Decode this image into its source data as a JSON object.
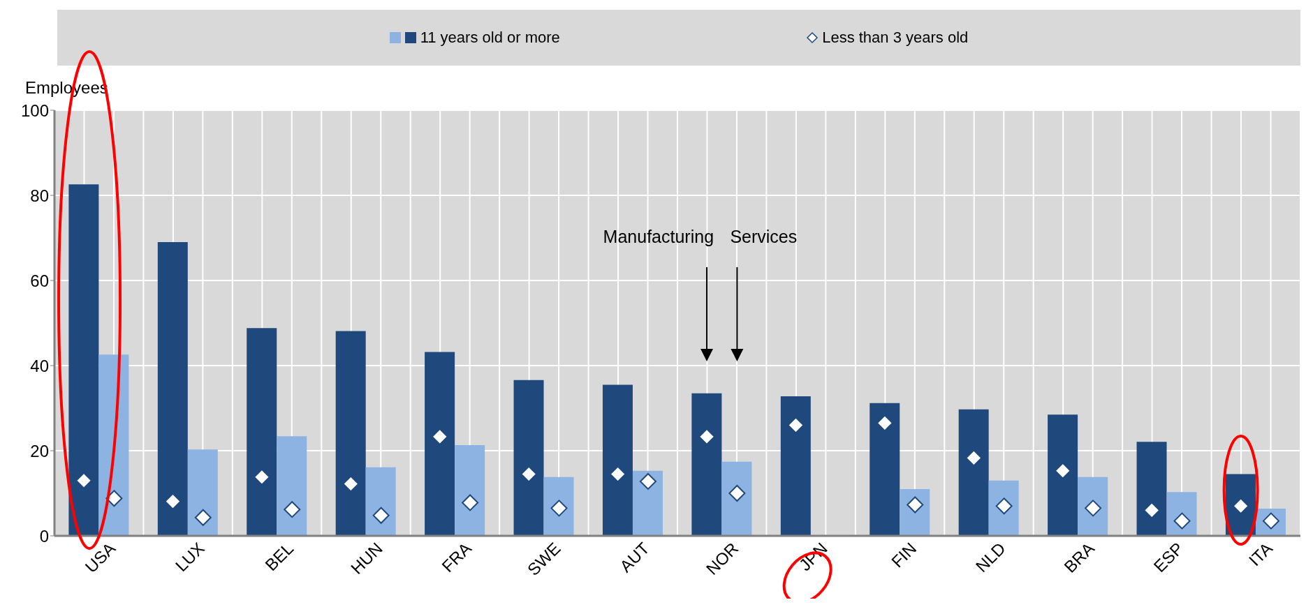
{
  "chart_data": {
    "type": "bar",
    "ylabel": "Employees",
    "categories": [
      "USA",
      "LUX",
      "BEL",
      "HUN",
      "FRA",
      "SWE",
      "AUT",
      "NOR",
      "JPN",
      "FIN",
      "NLD",
      "BRA",
      "ESP",
      "ITA"
    ],
    "series": [
      {
        "name": "11 years old or more",
        "color": "#1f497d",
        "values": [
          82.6,
          69.0,
          48.8,
          48.1,
          43.2,
          36.6,
          35.5,
          33.5,
          32.8,
          31.2,
          29.7,
          28.5,
          22.1,
          14.5
        ]
      },
      {
        "color": "#8db3e2",
        "values": [
          42.6,
          20.3,
          23.4,
          16.1,
          21.3,
          13.8,
          15.3,
          17.4,
          null,
          11.0,
          13.0,
          13.8,
          10.3,
          6.4
        ]
      },
      {
        "type": "scatter",
        "color": "#ffffff",
        "values": [
          13.0,
          8.1,
          13.8,
          12.2,
          23.3,
          14.5,
          14.5,
          23.3,
          26.0,
          26.5,
          18.3,
          15.3,
          6.0,
          7.0
        ]
      },
      {
        "name": "Less than 3 years old",
        "type": "scatter",
        "color": "#ffffff",
        "values": [
          8.8,
          4.3,
          6.2,
          4.8,
          7.8,
          6.5,
          12.8,
          10.0,
          null,
          7.3,
          7.0,
          6.5,
          3.5,
          3.5
        ]
      }
    ],
    "ylim": [
      0,
      100
    ],
    "yticks": [
      0,
      20,
      40,
      60,
      80,
      100
    ],
    "grid": true,
    "legend": "top",
    "marker": "diamond",
    "annotations": [
      "Manufacturing",
      "Services"
    ]
  }
}
